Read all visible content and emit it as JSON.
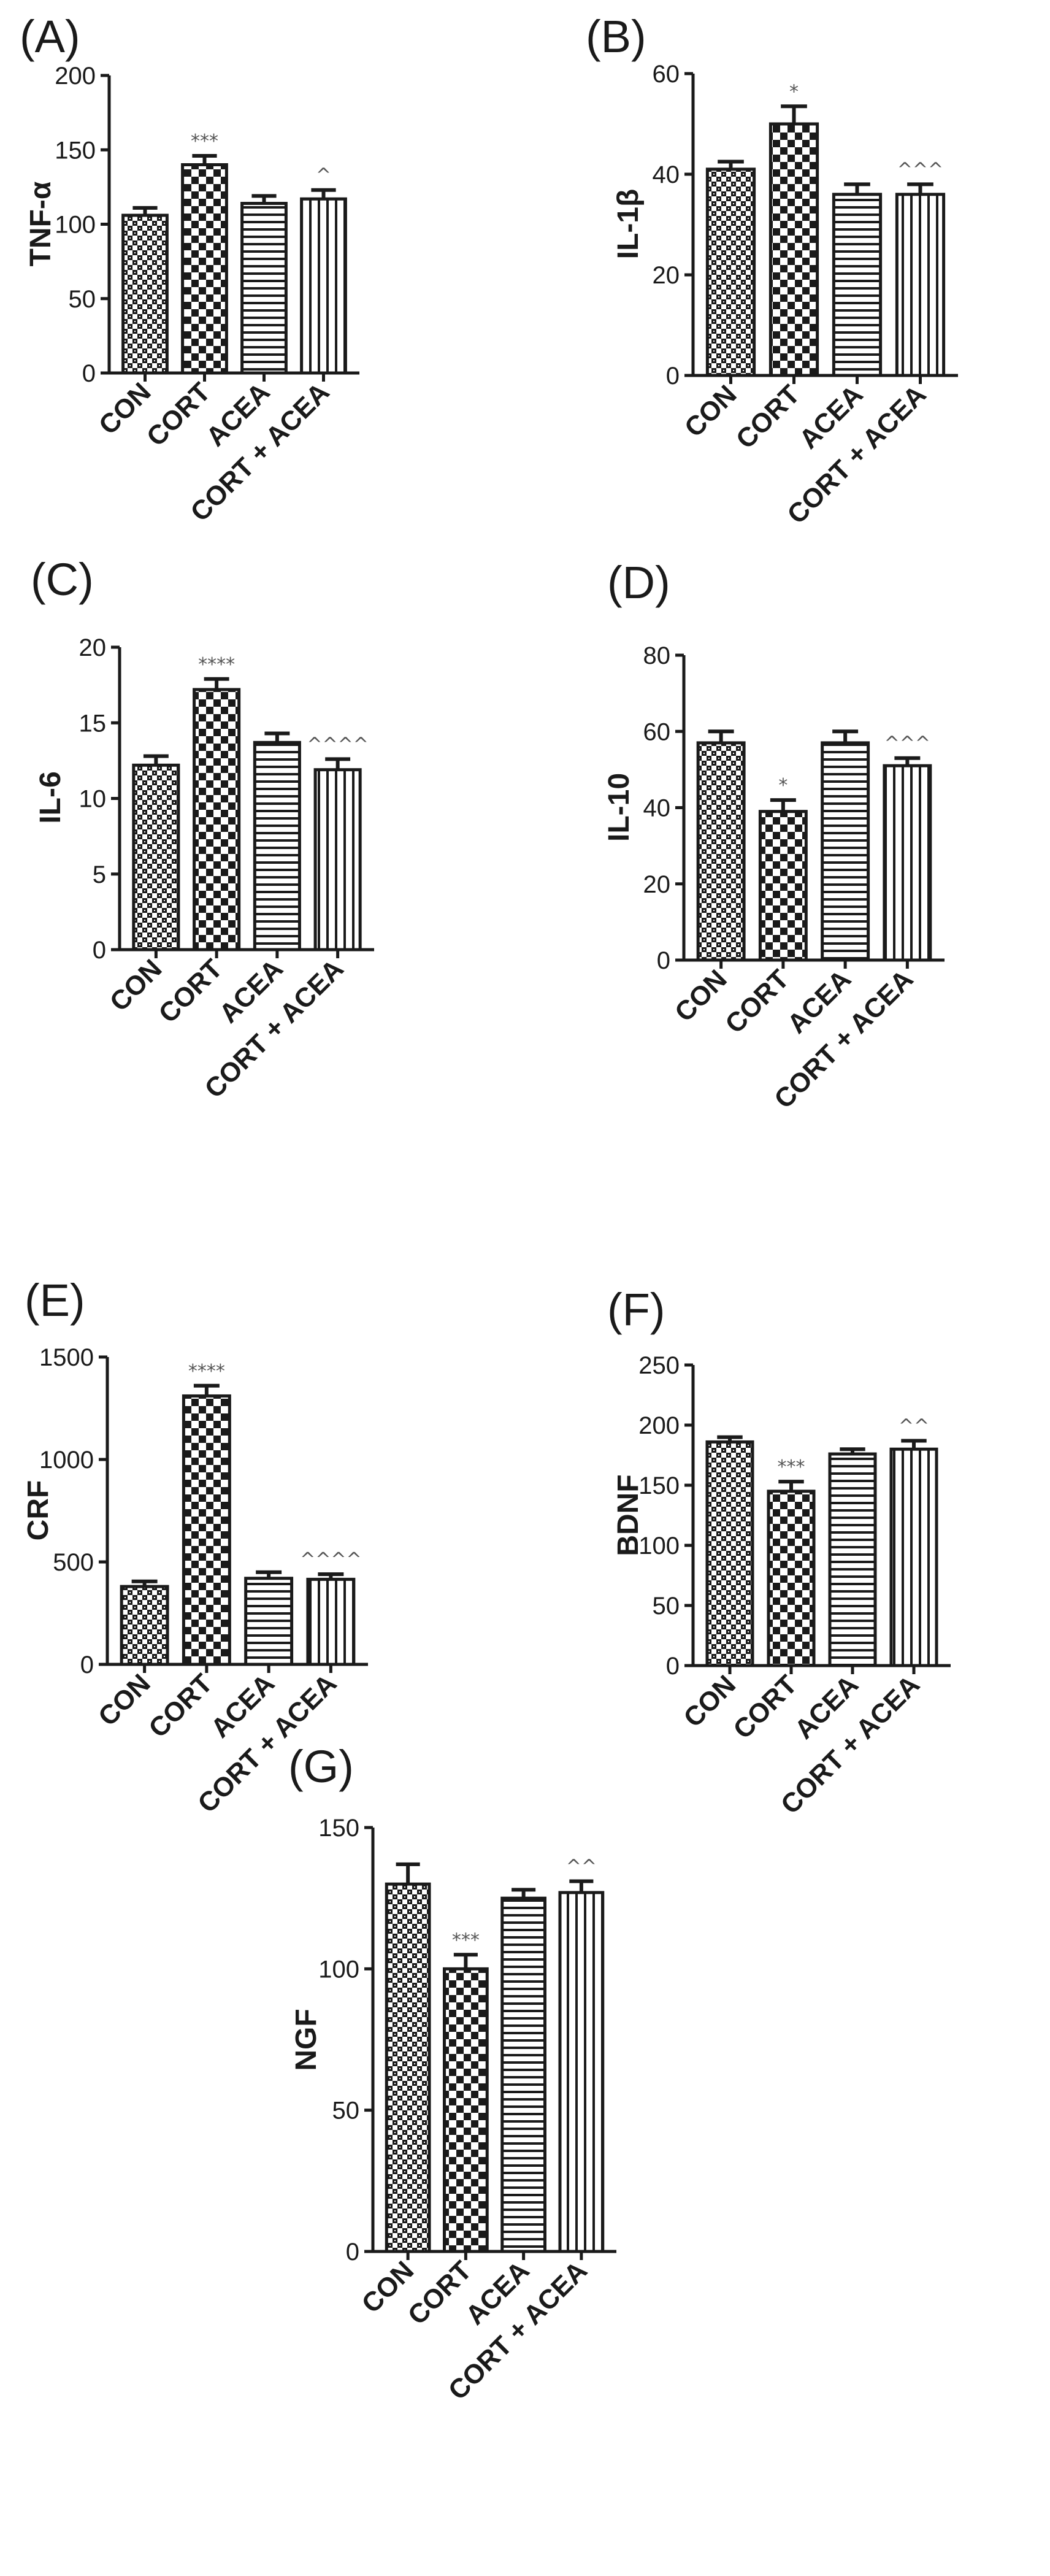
{
  "chart_data": [
    {
      "panel": "(A)",
      "type": "bar",
      "ylabel": "TNF-α",
      "ylim": [
        0,
        200
      ],
      "yticks": [
        0,
        50,
        100,
        150,
        200
      ],
      "categories": [
        "CON",
        "CORT",
        "ACEA",
        "CORT + ACEA"
      ],
      "values": [
        106,
        140,
        114,
        117
      ],
      "errors": [
        5,
        6,
        5,
        6
      ],
      "significance": [
        "",
        "***",
        "",
        "^"
      ],
      "patterns": [
        "dense-check",
        "check",
        "horizontal",
        "vertical"
      ]
    },
    {
      "panel": "(B)",
      "type": "bar",
      "ylabel": "IL-1β",
      "ylim": [
        0,
        60
      ],
      "yticks": [
        0,
        20,
        40,
        60
      ],
      "categories": [
        "CON",
        "CORT",
        "ACEA",
        "CORT + ACEA"
      ],
      "values": [
        41,
        50,
        36,
        36
      ],
      "errors": [
        1.5,
        3.5,
        2,
        2
      ],
      "significance": [
        "",
        "*",
        "",
        "^^^"
      ],
      "patterns": [
        "dense-check",
        "check",
        "horizontal",
        "vertical"
      ]
    },
    {
      "panel": "(C)",
      "type": "bar",
      "ylabel": "IL-6",
      "ylim": [
        0,
        20
      ],
      "yticks": [
        0,
        5,
        10,
        15,
        20
      ],
      "categories": [
        "CON",
        "CORT",
        "ACEA",
        "CORT + ACEA"
      ],
      "values": [
        12.2,
        17.2,
        13.7,
        11.9
      ],
      "errors": [
        0.6,
        0.7,
        0.6,
        0.7
      ],
      "significance": [
        "",
        "****",
        "",
        "^^^^"
      ],
      "patterns": [
        "dense-check",
        "check",
        "horizontal",
        "vertical"
      ]
    },
    {
      "panel": "(D)",
      "type": "bar",
      "ylabel": "IL-10",
      "ylim": [
        0,
        80
      ],
      "yticks": [
        0,
        20,
        40,
        60,
        80
      ],
      "categories": [
        "CON",
        "CORT",
        "ACEA",
        "CORT + ACEA"
      ],
      "values": [
        57,
        39,
        57,
        51
      ],
      "errors": [
        3,
        3,
        3,
        2
      ],
      "significance": [
        "",
        "*",
        "",
        "^^^"
      ],
      "patterns": [
        "dense-check",
        "check",
        "horizontal",
        "vertical"
      ]
    },
    {
      "panel": "(E)",
      "type": "bar",
      "ylabel": "CRF",
      "ylim": [
        0,
        1500
      ],
      "yticks": [
        0,
        500,
        1000,
        1500
      ],
      "categories": [
        "CON",
        "CORT",
        "ACEA",
        "CORT + ACEA"
      ],
      "values": [
        380,
        1310,
        420,
        415
      ],
      "errors": [
        25,
        50,
        30,
        25
      ],
      "significance": [
        "",
        "****",
        "",
        "^^^^"
      ],
      "patterns": [
        "dense-check",
        "check",
        "horizontal",
        "vertical"
      ]
    },
    {
      "panel": "(F)",
      "type": "bar",
      "ylabel": "BDNF",
      "ylim": [
        0,
        250
      ],
      "yticks": [
        0,
        50,
        100,
        150,
        200,
        250
      ],
      "categories": [
        "CON",
        "CORT",
        "ACEA",
        "CORT + ACEA"
      ],
      "values": [
        186,
        145,
        176,
        180
      ],
      "errors": [
        4,
        8,
        4,
        7
      ],
      "significance": [
        "",
        "***",
        "",
        "^^"
      ],
      "patterns": [
        "dense-check",
        "check",
        "horizontal",
        "vertical"
      ]
    },
    {
      "panel": "(G)",
      "type": "bar",
      "ylabel": "NGF",
      "ylim": [
        0,
        150
      ],
      "yticks": [
        0,
        50,
        100,
        150
      ],
      "categories": [
        "CON",
        "CORT",
        "ACEA",
        "CORT + ACEA"
      ],
      "values": [
        130,
        100,
        125,
        127
      ],
      "errors": [
        7,
        5,
        3,
        4
      ],
      "significance": [
        "",
        "***",
        "",
        "^^"
      ],
      "patterns": [
        "dense-check",
        "check",
        "horizontal",
        "vertical"
      ]
    }
  ]
}
